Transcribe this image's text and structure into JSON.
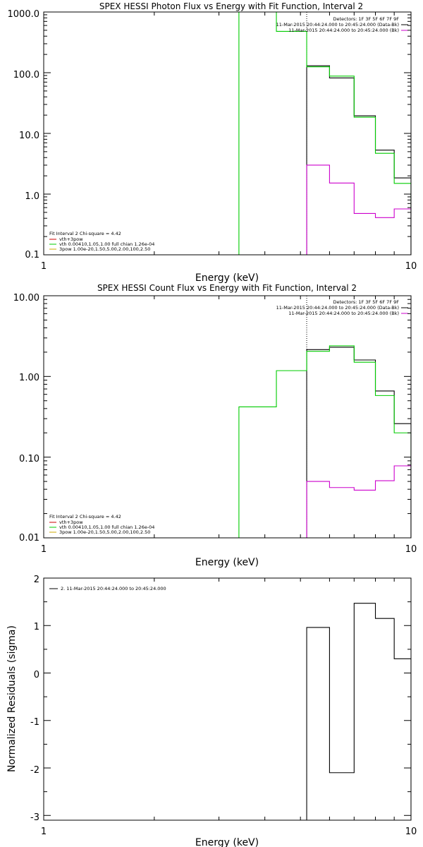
{
  "chart_data": [
    {
      "type": "line",
      "title": "SPEX HESSI Photon Flux vs Energy with Fit Function, Interval 2",
      "xlabel": "Energy (keV)",
      "ylabel": "",
      "xscale": "log",
      "yscale": "log",
      "xlim": [
        1,
        10
      ],
      "ylim": [
        0.1,
        1000
      ],
      "xticks": [
        "1",
        "10"
      ],
      "yticks": [
        "0.1",
        "1.0",
        "10.0",
        "100.0",
        "1000.0"
      ],
      "fit_boundary_x": 5.2,
      "legend_top_right": [
        {
          "text": "Detectors: 1F 3F 5F 6F 7F 9F",
          "color": "#000000"
        },
        {
          "text": "11-Mar-2015 20:44:24.000 to 20:45:24.000 (Data-Bk)",
          "color": "#000000"
        },
        {
          "text": "11-Mar-2015 20:44:24.000 to 20:45:24.000 (Bk)",
          "color": "#cc00cc"
        }
      ],
      "legend_bottom_left": [
        {
          "text": "Fit Interval 2   Chi-square = 4.42",
          "color": "#000000"
        },
        {
          "text": "vth+3pow",
          "color": "#cc0000"
        },
        {
          "text": "vth 0.00410,1.05,1.00  full chian 1.26e-04",
          "color": "#00cc00"
        },
        {
          "text": "3pow 1.00e-20,1.50,5.00,2.00,100,2.50",
          "color": "#ccaa00"
        }
      ],
      "series": [
        {
          "color": "#000000",
          "edges": [
            5.2,
            6.0,
            7.0,
            8.0,
            9.0,
            10.0
          ],
          "values": [
            130,
            82,
            19.5,
            5.3,
            1.85
          ]
        },
        {
          "color": "#00cc00",
          "edges": [
            3.4,
            4.3,
            5.2,
            6.0,
            7.0,
            8.0,
            9.0,
            10.0
          ],
          "values": [
            1000,
            480,
            125,
            88,
            18.5,
            4.7,
            1.5
          ]
        },
        {
          "color": "#cc00cc",
          "edges": [
            5.2,
            6.0,
            7.0,
            8.0,
            9.0,
            10.0
          ],
          "values": [
            3.0,
            1.52,
            0.48,
            0.41,
            0.57
          ]
        }
      ]
    },
    {
      "type": "line",
      "title": "SPEX HESSI Count Flux vs Energy with Fit Function, Interval 2",
      "xlabel": "Energy (keV)",
      "ylabel": "",
      "xscale": "log",
      "yscale": "log",
      "xlim": [
        1,
        10
      ],
      "ylim": [
        0.01,
        10
      ],
      "xticks": [
        "1",
        "10"
      ],
      "yticks": [
        "0.01",
        "0.10",
        "1.00",
        "10.00"
      ],
      "fit_boundary_x": 5.2,
      "legend_top_right": [
        {
          "text": "Detectors: 1F 3F 5F 6F 7F 9F",
          "color": "#000000"
        },
        {
          "text": "11-Mar-2015 20:44:24.000 to 20:45:24.000 (Data-Bk)",
          "color": "#000000"
        },
        {
          "text": "11-Mar-2015 20:44:24.000 to 20:45:24.000 (Bk)",
          "color": "#cc00cc"
        }
      ],
      "legend_bottom_left": [
        {
          "text": "Fit Interval 2   Chi-square = 4.42",
          "color": "#000000"
        },
        {
          "text": "vth+3pow",
          "color": "#cc0000"
        },
        {
          "text": "vth 0.00410,1.05,1.00  full chian 1.26e-04",
          "color": "#00cc00"
        },
        {
          "text": "3pow 1.00e-20,1.50,5.00,2.00,100,2.50",
          "color": "#ccaa00"
        }
      ],
      "series": [
        {
          "color": "#000000",
          "edges": [
            5.2,
            6.0,
            7.0,
            8.0,
            9.0,
            10.0
          ],
          "values": [
            2.15,
            2.3,
            1.6,
            0.66,
            0.26
          ]
        },
        {
          "color": "#00cc00",
          "edges": [
            3.4,
            4.3,
            5.2,
            6.0,
            7.0,
            8.0,
            9.0,
            10.0
          ],
          "values": [
            0.42,
            1.18,
            2.05,
            2.4,
            1.5,
            0.58,
            0.2
          ]
        },
        {
          "color": "#cc00cc",
          "edges": [
            5.2,
            6.0,
            7.0,
            8.0,
            9.0,
            10.0
          ],
          "values": [
            0.05,
            0.042,
            0.039,
            0.051,
            0.078
          ]
        }
      ]
    },
    {
      "type": "line",
      "title": "",
      "xlabel": "Energy (keV)",
      "ylabel": "Normalized Residuals (sigma)",
      "xscale": "log",
      "yscale": "linear",
      "xlim": [
        1,
        10
      ],
      "ylim": [
        -3.1,
        2
      ],
      "xticks": [
        "1",
        "10"
      ],
      "yticks": [
        "-3",
        "-2",
        "-1",
        "0",
        "1",
        "2"
      ],
      "legend_top_left": [
        {
          "text": "2. 11-Mar-2015 20:44:24.000 to 20:45:24.000",
          "color": "#000000"
        }
      ],
      "series": [
        {
          "color": "#000000",
          "edges": [
            5.2,
            6.0,
            7.0,
            8.0,
            9.0,
            10.0
          ],
          "values": [
            0.96,
            -2.1,
            1.47,
            1.15,
            0.3
          ]
        }
      ]
    }
  ]
}
